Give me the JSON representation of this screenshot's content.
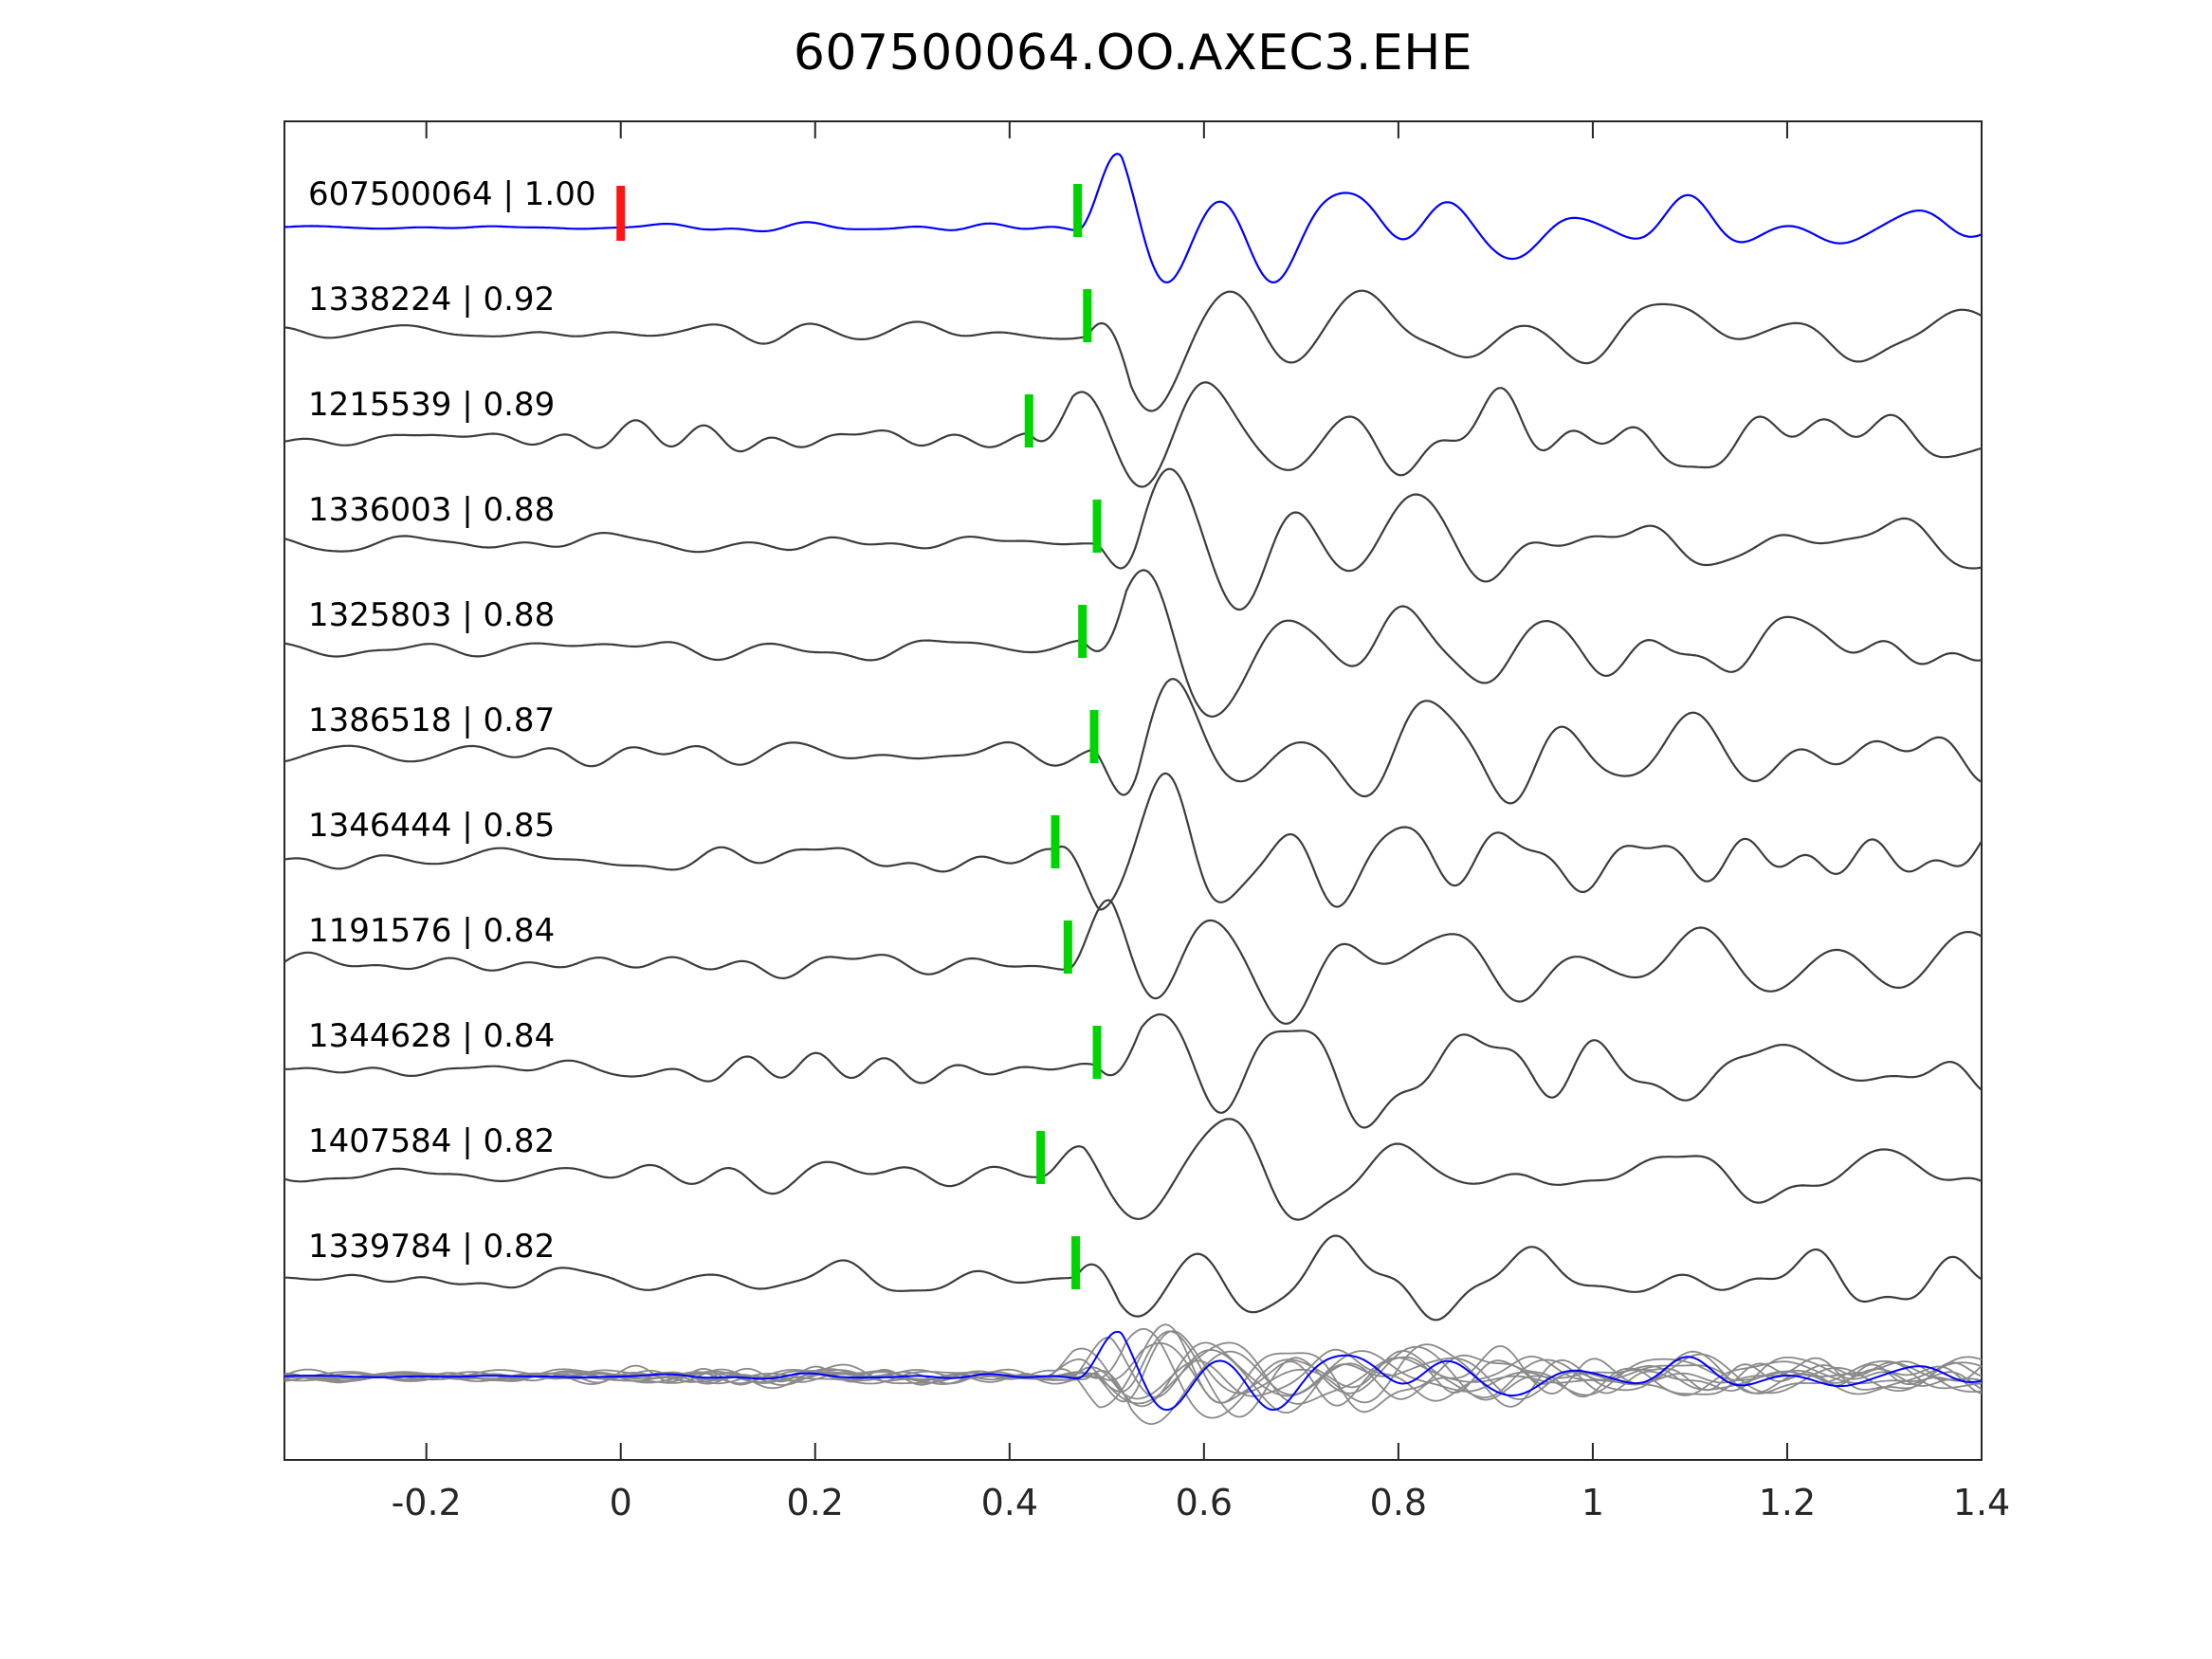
{
  "title": "607500064.OO.AXEC3.EHE",
  "chart_data": {
    "type": "line",
    "title": "607500064.OO.AXEC3.EHE",
    "xlabel": "",
    "ylabel": "",
    "xlim": [
      -0.346,
      1.4
    ],
    "x_ticks": [
      -0.2,
      0,
      0.2,
      0.4,
      0.6,
      0.8,
      1,
      1.2,
      1.4
    ],
    "x_tick_labels": [
      "-0.2",
      "0",
      "0.2",
      "0.4",
      "0.6",
      "0.8",
      "1",
      "1.2",
      "1.4"
    ],
    "grid": false,
    "legend": "none",
    "colors": {
      "background": "#ffffff",
      "axis": "#262626",
      "text": "#000000",
      "template_trace": "#0000ff",
      "detection_trace": "#3c3c3c",
      "overlay_trace": "#8a8a8a",
      "pick_marker": "#00d400",
      "template_origin_marker": "#ff1414"
    },
    "traces": [
      {
        "id": "607500064",
        "correlation": "1.00",
        "label": "607500064 | 1.00",
        "is_template": true,
        "pick_time": 0.47,
        "origin_marker_time": 0.0
      },
      {
        "id": "1338224",
        "correlation": "0.92",
        "label": "1338224 | 0.92",
        "is_template": false,
        "pick_time": 0.48
      },
      {
        "id": "1215539",
        "correlation": "0.89",
        "label": "1215539 | 0.89",
        "is_template": false,
        "pick_time": 0.42
      },
      {
        "id": "1336003",
        "correlation": "0.88",
        "label": "1336003 | 0.88",
        "is_template": false,
        "pick_time": 0.49
      },
      {
        "id": "1325803",
        "correlation": "0.88",
        "label": "1325803 | 0.88",
        "is_template": false,
        "pick_time": 0.475
      },
      {
        "id": "1386518",
        "correlation": "0.87",
        "label": "1386518 | 0.87",
        "is_template": false,
        "pick_time": 0.487
      },
      {
        "id": "1346444",
        "correlation": "0.85",
        "label": "1346444 | 0.85",
        "is_template": false,
        "pick_time": 0.447
      },
      {
        "id": "1191576",
        "correlation": "0.84",
        "label": "1191576 | 0.84",
        "is_template": false,
        "pick_time": 0.46
      },
      {
        "id": "1344628",
        "correlation": "0.84",
        "label": "1344628 | 0.84",
        "is_template": false,
        "pick_time": 0.49
      },
      {
        "id": "1407584",
        "correlation": "0.82",
        "label": "1407584 | 0.82",
        "is_template": false,
        "pick_time": 0.432
      },
      {
        "id": "1339784",
        "correlation": "0.82",
        "label": "1339784 | 0.82",
        "is_template": false,
        "pick_time": 0.468
      }
    ],
    "overlay_row": {
      "description": "All detection waveforms overlaid in gray with the blue template waveform on top, bottom row of plot"
    }
  }
}
